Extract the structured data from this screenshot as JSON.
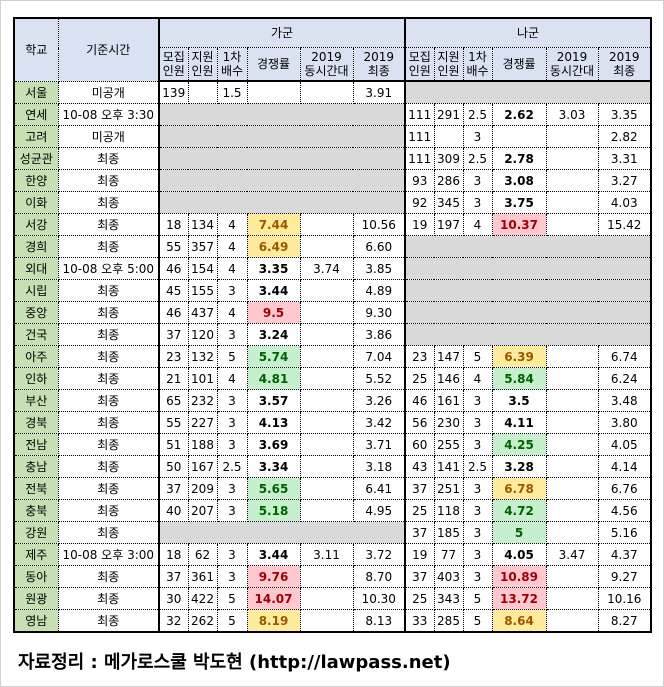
{
  "headers": {
    "school": "학교",
    "time": "기준시간",
    "group_ga": "가군",
    "group_na": "나군",
    "cols": [
      "모집\n인원",
      "지원\n인원",
      "1차\n배수",
      "경쟁률",
      "2019\n동시간대",
      "2019\n최종"
    ]
  },
  "colors": {
    "header": "#d9e1f2",
    "school": "#c6e0b4",
    "gray": "#d9d9d9",
    "yellow": "#ffeb9c",
    "red": "#ffc7ce",
    "green": "#c6efce"
  },
  "rows": [
    {
      "school": "서울",
      "time": "미공개",
      "ga": [
        "139",
        "",
        "1.5",
        "",
        "",
        "3.91",
        ""
      ],
      "na": null
    },
    {
      "school": "연세",
      "time": "10-08 오후 3:30",
      "ga": null,
      "na": [
        "111",
        "291",
        "2.5",
        "2.62",
        "3.03",
        "3.35",
        ""
      ]
    },
    {
      "school": "고려",
      "time": "미공개",
      "ga": null,
      "na": [
        "111",
        "",
        "3",
        "",
        "",
        "2.82",
        ""
      ]
    },
    {
      "school": "성균관",
      "time": "최종",
      "ga": null,
      "na": [
        "111",
        "309",
        "2.5",
        "2.78",
        "",
        "3.31",
        ""
      ]
    },
    {
      "school": "한양",
      "time": "최종",
      "ga": null,
      "na": [
        "93",
        "286",
        "3",
        "3.08",
        "",
        "3.27",
        ""
      ]
    },
    {
      "school": "이화",
      "time": "최종",
      "ga": null,
      "na": [
        "92",
        "345",
        "3",
        "3.75",
        "",
        "4.03",
        ""
      ]
    },
    {
      "school": "서강",
      "time": "최종",
      "ga": [
        "18",
        "134",
        "4",
        "7.44",
        "",
        "10.56",
        "yellow"
      ],
      "na": [
        "19",
        "197",
        "4",
        "10.37",
        "",
        "15.42",
        "red"
      ]
    },
    {
      "school": "경희",
      "time": "최종",
      "ga": [
        "55",
        "357",
        "4",
        "6.49",
        "",
        "6.60",
        "yellow"
      ],
      "na": null
    },
    {
      "school": "외대",
      "time": "10-08 오후 5:00",
      "ga": [
        "46",
        "154",
        "4",
        "3.35",
        "3.74",
        "3.85",
        ""
      ],
      "na": null
    },
    {
      "school": "시립",
      "time": "최종",
      "ga": [
        "45",
        "155",
        "3",
        "3.44",
        "",
        "4.89",
        ""
      ],
      "na": null
    },
    {
      "school": "중앙",
      "time": "최종",
      "ga": [
        "46",
        "437",
        "4",
        "9.5",
        "",
        "9.30",
        "red"
      ],
      "na": null
    },
    {
      "school": "건국",
      "time": "최종",
      "ga": [
        "37",
        "120",
        "3",
        "3.24",
        "",
        "3.86",
        ""
      ],
      "na": null
    },
    {
      "school": "아주",
      "time": "최종",
      "ga": [
        "23",
        "132",
        "5",
        "5.74",
        "",
        "7.04",
        "green"
      ],
      "na": [
        "23",
        "147",
        "5",
        "6.39",
        "",
        "6.74",
        "yellow"
      ]
    },
    {
      "school": "인하",
      "time": "최종",
      "ga": [
        "21",
        "101",
        "4",
        "4.81",
        "",
        "5.52",
        "green"
      ],
      "na": [
        "25",
        "146",
        "4",
        "5.84",
        "",
        "6.24",
        "green"
      ]
    },
    {
      "school": "부산",
      "time": "최종",
      "ga": [
        "65",
        "232",
        "3",
        "3.57",
        "",
        "3.26",
        ""
      ],
      "na": [
        "46",
        "161",
        "3",
        "3.5",
        "",
        "3.48",
        ""
      ]
    },
    {
      "school": "경북",
      "time": "최종",
      "ga": [
        "55",
        "227",
        "3",
        "4.13",
        "",
        "3.42",
        ""
      ],
      "na": [
        "56",
        "230",
        "3",
        "4.11",
        "",
        "3.80",
        ""
      ]
    },
    {
      "school": "전남",
      "time": "최종",
      "ga": [
        "51",
        "188",
        "3",
        "3.69",
        "",
        "3.71",
        ""
      ],
      "na": [
        "60",
        "255",
        "3",
        "4.25",
        "",
        "4.05",
        "green"
      ]
    },
    {
      "school": "충남",
      "time": "최종",
      "ga": [
        "50",
        "167",
        "2.5",
        "3.34",
        "",
        "3.18",
        ""
      ],
      "na": [
        "43",
        "141",
        "2.5",
        "3.28",
        "",
        "4.14",
        ""
      ]
    },
    {
      "school": "전북",
      "time": "최종",
      "ga": [
        "37",
        "209",
        "3",
        "5.65",
        "",
        "6.41",
        "green"
      ],
      "na": [
        "37",
        "251",
        "3",
        "6.78",
        "",
        "6.76",
        "yellow"
      ]
    },
    {
      "school": "충북",
      "time": "최종",
      "ga": [
        "40",
        "207",
        "3",
        "5.18",
        "",
        "4.95",
        "green"
      ],
      "na": [
        "25",
        "118",
        "3",
        "4.72",
        "",
        "4.56",
        "green"
      ]
    },
    {
      "school": "강원",
      "time": "최종",
      "ga": null,
      "na": [
        "37",
        "185",
        "3",
        "5",
        "",
        "5.16",
        "green"
      ]
    },
    {
      "school": "제주",
      "time": "10-08 오후 3:00",
      "ga": [
        "18",
        "62",
        "3",
        "3.44",
        "3.11",
        "3.72",
        ""
      ],
      "na": [
        "19",
        "77",
        "3",
        "4.05",
        "3.47",
        "4.37",
        ""
      ]
    },
    {
      "school": "동아",
      "time": "최종",
      "ga": [
        "37",
        "361",
        "3",
        "9.76",
        "",
        "8.70",
        "red"
      ],
      "na": [
        "37",
        "403",
        "3",
        "10.89",
        "",
        "9.27",
        "red"
      ]
    },
    {
      "school": "원광",
      "time": "최종",
      "ga": [
        "30",
        "422",
        "5",
        "14.07",
        "",
        "10.30",
        "red"
      ],
      "na": [
        "25",
        "343",
        "5",
        "13.72",
        "",
        "10.16",
        "red"
      ]
    },
    {
      "school": "영남",
      "time": "최종",
      "ga": [
        "32",
        "262",
        "5",
        "8.19",
        "",
        "8.13",
        "yellow"
      ],
      "na": [
        "33",
        "285",
        "5",
        "8.64",
        "",
        "8.27",
        "yellow"
      ]
    }
  ],
  "footer": "자료정리 : 메가로스쿨 박도현 (http://lawpass.net)"
}
